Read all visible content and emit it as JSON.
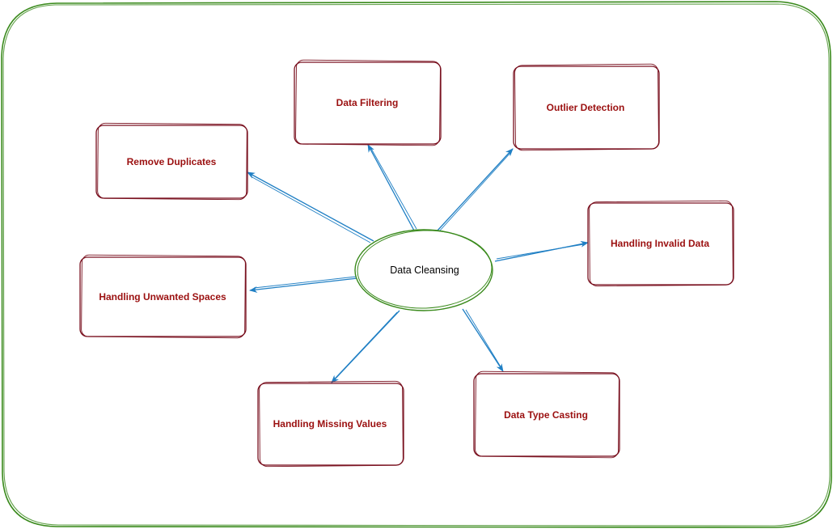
{
  "diagram": {
    "center": {
      "label": "Data Cleansing"
    },
    "nodes": [
      {
        "id": "data-filtering",
        "label": "Data Filtering"
      },
      {
        "id": "outlier-detection",
        "label": "Outlier Detection"
      },
      {
        "id": "remove-duplicates",
        "label": "Remove Duplicates"
      },
      {
        "id": "handling-invalid-data",
        "label": "Handling Invalid Data"
      },
      {
        "id": "handling-unwanted-spaces",
        "label": "Handling Unwanted Spaces"
      },
      {
        "id": "handling-missing-values",
        "label": "Handling Missing Values"
      },
      {
        "id": "data-type-casting",
        "label": "Data Type Casting"
      }
    ]
  },
  "colors": {
    "frame": "#3a8a1c",
    "center_stroke": "#3a8a1c",
    "box_stroke": "#7a1220",
    "box_text": "#9b1010",
    "arrow": "#1f7fc4",
    "center_text": "#000000"
  }
}
